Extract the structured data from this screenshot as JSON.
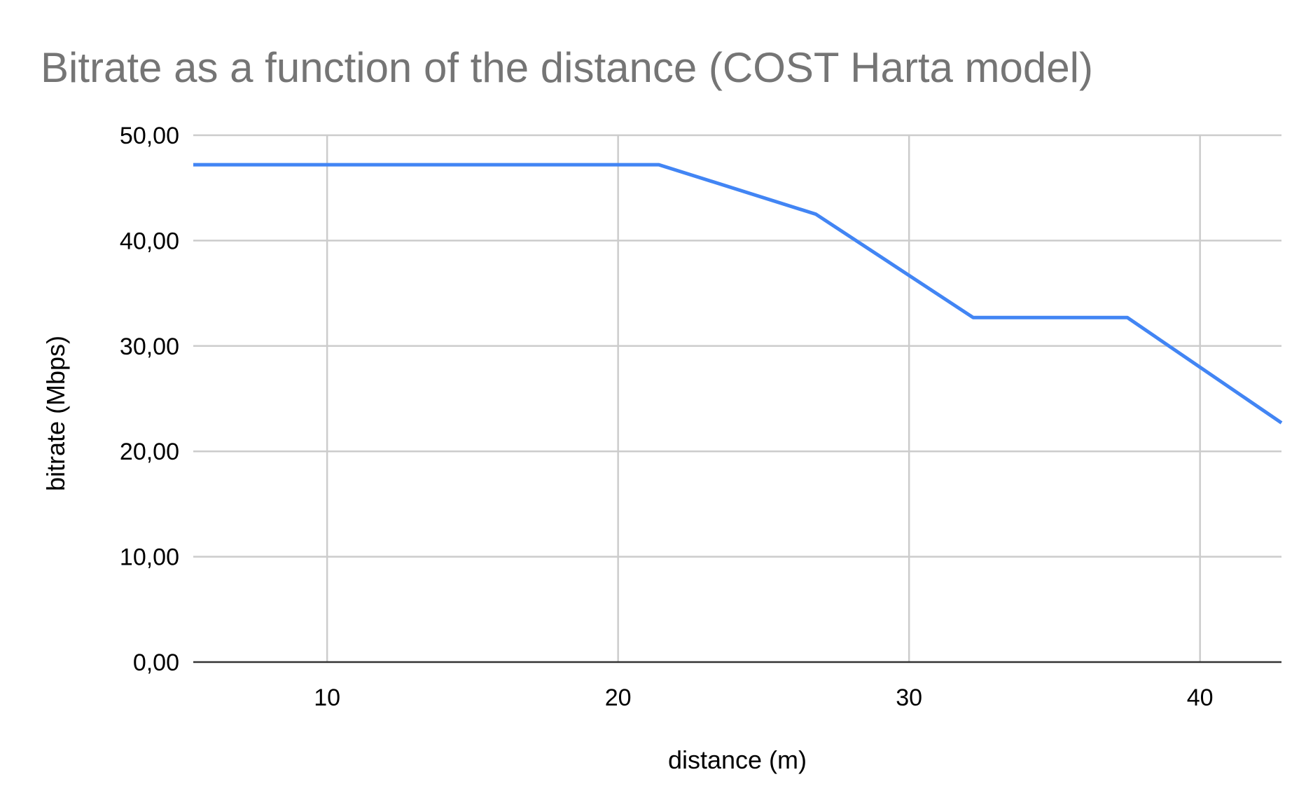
{
  "chart_data": {
    "type": "line",
    "title": "Bitrate as a function of the distance (COST Harta model)",
    "xlabel": "distance (m)",
    "ylabel": "bitrate (Mbps)",
    "xlim": [
      5.4,
      42.8
    ],
    "ylim": [
      0,
      50
    ],
    "x_ticks": [
      10,
      20,
      30,
      40
    ],
    "y_ticks": [
      0,
      10,
      20,
      30,
      40,
      50
    ],
    "y_tick_labels": [
      "0,00",
      "10,00",
      "20,00",
      "30,00",
      "40,00",
      "50,00"
    ],
    "x_tick_labels": [
      "10",
      "20",
      "30",
      "40"
    ],
    "grid": true,
    "legend": "none",
    "series": [
      {
        "color": "#4285f4",
        "x": [
          5.4,
          21.4,
          26.8,
          32.2,
          37.5,
          42.8
        ],
        "y": [
          47.2,
          47.2,
          42.5,
          32.7,
          32.7,
          22.7
        ]
      }
    ]
  }
}
